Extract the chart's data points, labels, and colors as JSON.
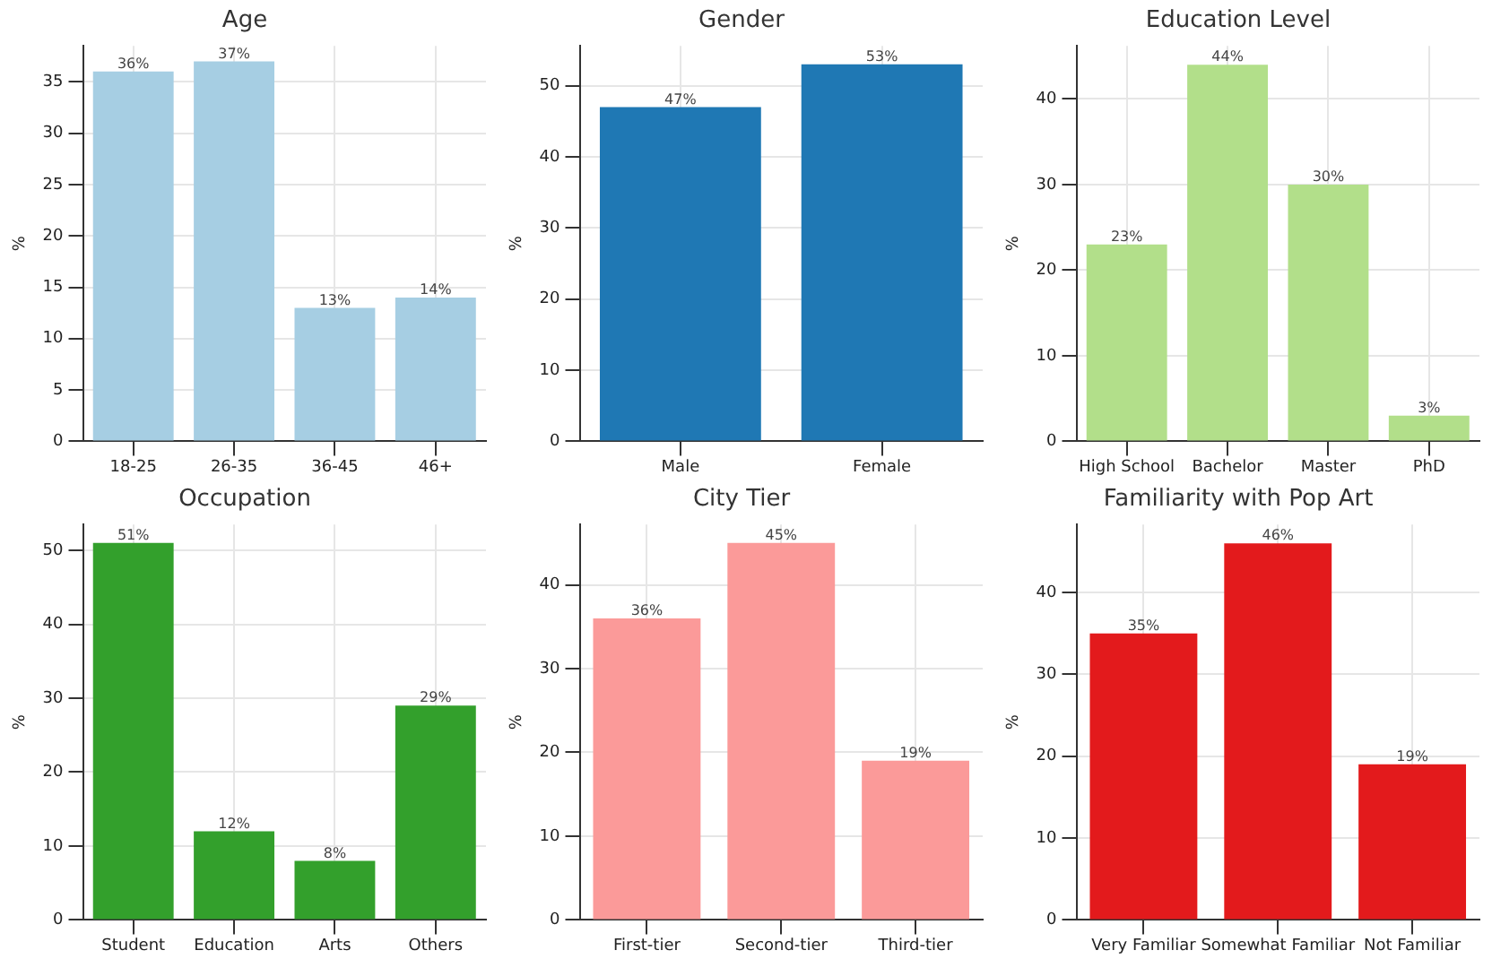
{
  "chart_data": [
    {
      "type": "bar",
      "title": "Age",
      "ylabel": "%",
      "categories": [
        "18-25",
        "26-35",
        "36-45",
        "46+"
      ],
      "values": [
        36,
        37,
        13,
        14
      ],
      "color": "#a6cee3",
      "value_labels": [
        "36%",
        "37%",
        "13%",
        "14%"
      ],
      "ylim": [
        0,
        38.5
      ],
      "yticks": [
        0,
        5,
        10,
        15,
        20,
        25,
        30,
        35
      ],
      "grid": true
    },
    {
      "type": "bar",
      "title": "Gender",
      "ylabel": "%",
      "categories": [
        "Male",
        "Female"
      ],
      "values": [
        47,
        53
      ],
      "color": "#1f78b4",
      "value_labels": [
        "47%",
        "53%"
      ],
      "ylim": [
        0,
        55.6
      ],
      "yticks": [
        0,
        10,
        20,
        30,
        40,
        50
      ],
      "grid": true
    },
    {
      "type": "bar",
      "title": "Education Level",
      "ylabel": "%",
      "categories": [
        "High School",
        "Bachelor",
        "Master",
        "PhD"
      ],
      "values": [
        23,
        44,
        30,
        3
      ],
      "color": "#b2df8a",
      "value_labels": [
        "23%",
        "44%",
        "30%",
        "3%"
      ],
      "ylim": [
        0,
        46.2
      ],
      "yticks": [
        0,
        10,
        20,
        30,
        40
      ],
      "grid": true
    },
    {
      "type": "bar",
      "title": "Occupation",
      "ylabel": "%",
      "categories": [
        "Student",
        "Education",
        "Arts",
        "Others"
      ],
      "values": [
        51,
        12,
        8,
        29
      ],
      "color": "#33a02c",
      "value_labels": [
        "51%",
        "12%",
        "8%",
        "29%"
      ],
      "ylim": [
        0,
        53.5
      ],
      "yticks": [
        0,
        10,
        20,
        30,
        40,
        50
      ],
      "grid": true
    },
    {
      "type": "bar",
      "title": "City Tier",
      "ylabel": "%",
      "categories": [
        "First-tier",
        "Second-tier",
        "Third-tier"
      ],
      "values": [
        36,
        45,
        19
      ],
      "color": "#fb9a99",
      "value_labels": [
        "36%",
        "45%",
        "19%"
      ],
      "ylim": [
        0,
        47.2
      ],
      "yticks": [
        0,
        10,
        20,
        30,
        40
      ],
      "grid": true
    },
    {
      "type": "bar",
      "title": "Familiarity with Pop Art",
      "ylabel": "%",
      "categories": [
        "Very Familiar",
        "Somewhat Familiar",
        "Not Familiar"
      ],
      "values": [
        35,
        46,
        19
      ],
      "color": "#e31a1c",
      "value_labels": [
        "35%",
        "46%",
        "19%"
      ],
      "ylim": [
        0,
        48.3
      ],
      "yticks": [
        0,
        10,
        20,
        30,
        40
      ],
      "grid": true
    }
  ]
}
